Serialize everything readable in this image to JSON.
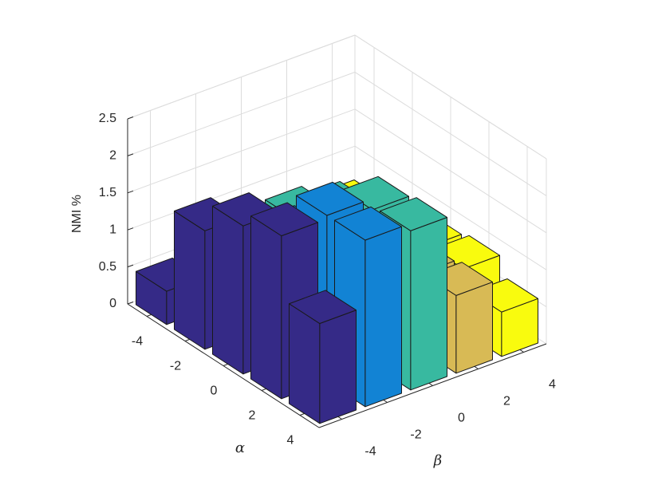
{
  "chart_data": {
    "type": "bar3",
    "zlabel": "NMI %",
    "xlabel": "α",
    "ylabel": "β",
    "x": [
      -4,
      -2,
      0,
      2,
      4
    ],
    "y": [
      -4,
      -2,
      0,
      2,
      4
    ],
    "series": [
      {
        "color": "#352a87",
        "values": [
          0.45,
          1.6,
          2.0,
          2.2,
          1.35
        ]
      },
      {
        "color": "#1283d4",
        "values": [
          0.5,
          1.2,
          1.6,
          2.25,
          2.25
        ]
      },
      {
        "color": "#38b9a0",
        "values": [
          0.6,
          1.3,
          1.7,
          2.1,
          2.15
        ]
      },
      {
        "color": "#d8ba55",
        "values": [
          0.5,
          0.8,
          0.9,
          1.0,
          1.05
        ]
      },
      {
        "color": "#f9fb0e",
        "values": [
          0.6,
          0.7,
          0.8,
          0.85,
          0.6
        ]
      }
    ],
    "xlim": [
      -5,
      5
    ],
    "ylim": [
      -5,
      5
    ],
    "zlim": [
      0,
      2.5
    ],
    "xticks": [
      -4,
      -2,
      0,
      2,
      4
    ],
    "yticks": [
      -4,
      -2,
      0,
      2,
      4
    ],
    "zticks": [
      0,
      0.5,
      1,
      1.5,
      2,
      2.5
    ],
    "grid": true
  }
}
